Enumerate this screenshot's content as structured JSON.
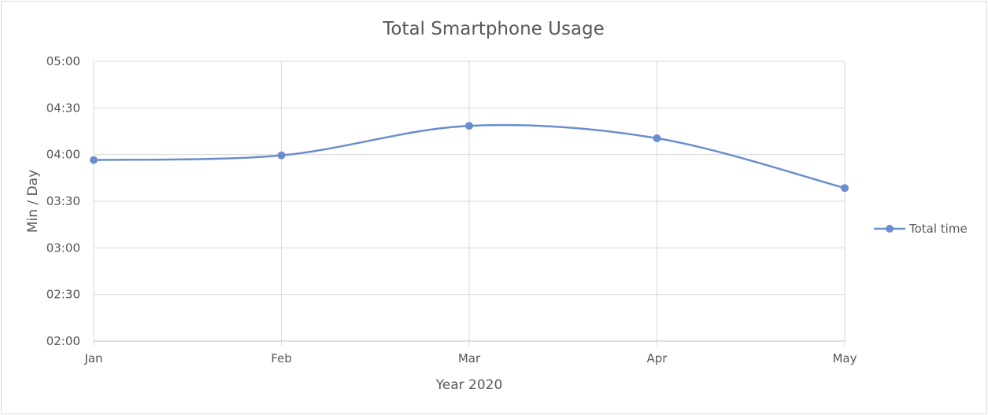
{
  "chart_data": {
    "type": "line",
    "title": "Total Smartphone Usage",
    "xlabel": "Year 2020",
    "ylabel": "Min / Day",
    "categories": [
      "Jan",
      "Feb",
      "Mar",
      "Apr",
      "May"
    ],
    "y_ticks": [
      "02:00",
      "02:30",
      "03:00",
      "03:30",
      "04:00",
      "04:30",
      "05:00"
    ],
    "ylim_minutes": [
      120,
      300
    ],
    "series": [
      {
        "name": "Total time",
        "color": "#6a8ecd",
        "values_minutes": [
          236.5,
          239.5,
          258.5,
          250.5,
          218.5
        ]
      }
    ],
    "grid": true,
    "smooth": true,
    "legend_position": "right",
    "marker": "circle"
  }
}
